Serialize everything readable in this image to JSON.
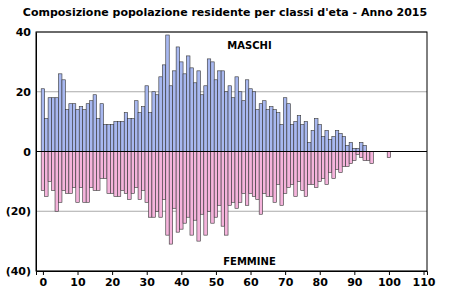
{
  "chart_data": {
    "type": "bar",
    "title": "Composizione popolazione residente per classi d'eta - Anno 2015",
    "x": [
      0,
      1,
      2,
      3,
      4,
      5,
      6,
      7,
      8,
      9,
      10,
      11,
      12,
      13,
      14,
      15,
      16,
      17,
      18,
      19,
      20,
      21,
      22,
      23,
      24,
      25,
      26,
      27,
      28,
      29,
      30,
      31,
      32,
      33,
      34,
      35,
      36,
      37,
      38,
      39,
      40,
      41,
      42,
      43,
      44,
      45,
      46,
      47,
      48,
      49,
      50,
      51,
      52,
      53,
      54,
      55,
      56,
      57,
      58,
      59,
      60,
      61,
      62,
      63,
      64,
      65,
      66,
      67,
      68,
      69,
      70,
      71,
      72,
      73,
      74,
      75,
      76,
      77,
      78,
      79,
      80,
      81,
      82,
      83,
      84,
      85,
      86,
      87,
      88,
      89,
      90,
      91,
      92,
      93,
      94,
      95,
      96,
      97,
      98,
      99,
      100
    ],
    "series": [
      {
        "name": "MASCHI",
        "color": "#a8b8f0",
        "values": [
          21,
          11,
          18,
          18,
          18,
          26,
          24,
          14,
          16,
          16,
          14,
          15,
          14,
          16,
          17,
          19,
          11,
          16,
          9,
          9,
          9,
          10,
          10,
          10,
          13,
          11,
          11,
          17,
          13,
          15,
          22,
          13,
          20,
          19,
          25,
          29,
          39,
          22,
          27,
          35,
          30,
          26,
          32,
          28,
          23,
          27,
          19,
          22,
          31,
          30,
          24,
          27,
          27,
          20,
          22,
          18,
          25,
          20,
          17,
          24,
          21,
          20,
          14,
          16,
          17,
          14,
          15,
          14,
          13,
          9,
          18,
          16,
          9,
          10,
          12,
          9,
          10,
          3,
          7,
          11,
          9,
          5,
          7,
          4,
          5,
          7,
          6,
          5,
          2,
          3,
          1,
          1,
          3,
          2,
          0,
          0,
          0,
          0,
          0,
          0,
          0
        ]
      },
      {
        "name": "FEMMINE",
        "color": "#f5b4dc",
        "values": [
          -13,
          -15,
          -10,
          -13,
          -20,
          -17,
          -13,
          -14,
          -14,
          -12,
          -17,
          -12,
          -17,
          -17,
          -12,
          -13,
          -13,
          -9,
          -9,
          -14,
          -14,
          -15,
          -15,
          -13,
          -14,
          -16,
          -14,
          -12,
          -16,
          -13,
          -17,
          -22,
          -22,
          -20,
          -22,
          -16,
          -28,
          -31,
          -19,
          -27,
          -26,
          -24,
          -22,
          -28,
          -23,
          -30,
          -21,
          -28,
          -20,
          -24,
          -22,
          -18,
          -25,
          -28,
          -18,
          -17,
          -19,
          -17,
          -14,
          -18,
          -14,
          -15,
          -16,
          -21,
          -14,
          -15,
          -15,
          -17,
          -11,
          -18,
          -14,
          -12,
          -11,
          -15,
          -10,
          -13,
          -15,
          -11,
          -11,
          -12,
          -10,
          -9,
          -11,
          -7,
          -9,
          -6,
          -7,
          -5,
          -5,
          -4,
          -3,
          -1,
          -2,
          -3,
          -3,
          -4,
          0,
          0,
          0,
          0,
          -2
        ]
      }
    ],
    "xlim": [
      -2,
      111
    ],
    "xticks": [
      0,
      10,
      20,
      30,
      40,
      50,
      60,
      70,
      80,
      90,
      100,
      110
    ],
    "ylim": [
      -40,
      40
    ],
    "yticks": [
      {
        "value": -40,
        "label": "(40)"
      },
      {
        "value": -20,
        "label": "(20)"
      },
      0,
      20,
      40
    ],
    "grid": true
  }
}
